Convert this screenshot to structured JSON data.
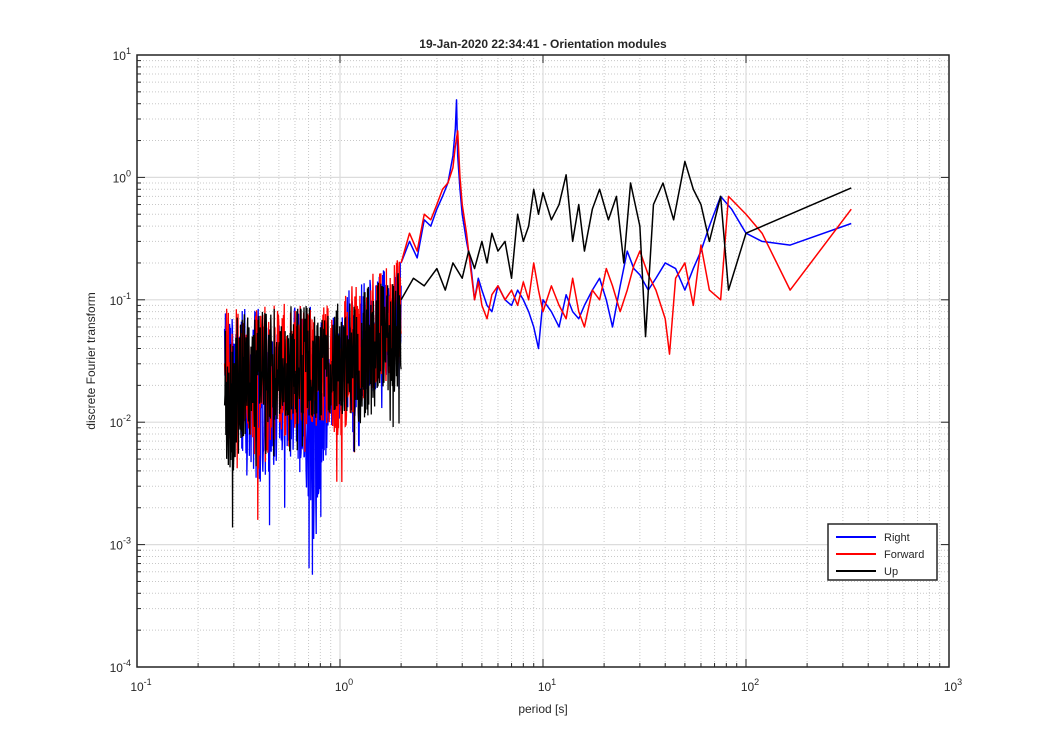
{
  "chart_data": {
    "type": "line",
    "title": "19-Jan-2020 22:34:41 - Orientation modules",
    "xlabel": "period [s]",
    "ylabel": "discrete Fourier transform",
    "xscale": "log",
    "yscale": "log",
    "xlim": [
      0.1,
      1000
    ],
    "ylim": [
      0.0001,
      10
    ],
    "grid": true,
    "minor_grid": true,
    "legend_position": "bottom-right",
    "x_ticks": [
      {
        "base": "10",
        "exp": "-1",
        "value": 0.1
      },
      {
        "base": "10",
        "exp": "0",
        "value": 1
      },
      {
        "base": "10",
        "exp": "1",
        "value": 10
      },
      {
        "base": "10",
        "exp": "2",
        "value": 100
      },
      {
        "base": "10",
        "exp": "3",
        "value": 1000
      }
    ],
    "y_ticks": [
      {
        "base": "10",
        "exp": "-4",
        "value": 0.0001
      },
      {
        "base": "10",
        "exp": "-3",
        "value": 0.001
      },
      {
        "base": "10",
        "exp": "-2",
        "value": 0.01
      },
      {
        "base": "10",
        "exp": "-1",
        "value": 0.1
      },
      {
        "base": "10",
        "exp": "0",
        "value": 1
      },
      {
        "base": "10",
        "exp": "1",
        "value": 10
      }
    ],
    "dense_region": {
      "x_range": [
        0.27,
        2.0
      ],
      "note_points": "approximate envelope of the noisy short-period spectrum",
      "Right": {
        "lower": [
          [
            0.27,
            0.006
          ],
          [
            0.3,
            0.003
          ],
          [
            0.35,
            0.002
          ],
          [
            0.4,
            0.001
          ],
          [
            0.5,
            0.002
          ],
          [
            0.6,
            0.002
          ],
          [
            0.75,
            0.0004
          ],
          [
            0.9,
            0.004
          ],
          [
            1.2,
            0.006
          ],
          [
            1.6,
            0.01
          ],
          [
            2.0,
            0.02
          ]
        ],
        "upper": [
          [
            0.27,
            0.1
          ],
          [
            0.35,
            0.09
          ],
          [
            0.45,
            0.085
          ],
          [
            0.6,
            0.095
          ],
          [
            0.8,
            0.1
          ],
          [
            1.0,
            0.11
          ],
          [
            1.3,
            0.14
          ],
          [
            1.6,
            0.18
          ],
          [
            2.0,
            0.22
          ]
        ]
      },
      "Forward": {
        "lower": [
          [
            0.27,
            0.004
          ],
          [
            0.3,
            0.003
          ],
          [
            0.35,
            0.004
          ],
          [
            0.4,
            0.0014
          ],
          [
            0.5,
            0.003
          ],
          [
            0.6,
            0.004
          ],
          [
            0.8,
            0.005
          ],
          [
            1.0,
            0.003
          ],
          [
            1.2,
            0.006
          ],
          [
            1.5,
            0.01
          ],
          [
            2.0,
            0.015
          ]
        ],
        "upper": [
          [
            0.27,
            0.09
          ],
          [
            0.35,
            0.085
          ],
          [
            0.45,
            0.09
          ],
          [
            0.6,
            0.1
          ],
          [
            0.8,
            0.1
          ],
          [
            1.0,
            0.12
          ],
          [
            1.3,
            0.15
          ],
          [
            1.6,
            0.2
          ],
          [
            2.0,
            0.23
          ]
        ]
      },
      "Up": {
        "lower": [
          [
            0.27,
            0.002
          ],
          [
            0.3,
            0.0013
          ],
          [
            0.35,
            0.004
          ],
          [
            0.45,
            0.005
          ],
          [
            0.6,
            0.006
          ],
          [
            0.8,
            0.005
          ],
          [
            1.0,
            0.007
          ],
          [
            1.3,
            0.004
          ],
          [
            1.6,
            0.008
          ],
          [
            2.0,
            0.01
          ]
        ],
        "upper": [
          [
            0.27,
            0.085
          ],
          [
            0.35,
            0.08
          ],
          [
            0.45,
            0.085
          ],
          [
            0.6,
            0.09
          ],
          [
            0.8,
            0.09
          ],
          [
            1.0,
            0.1
          ],
          [
            1.3,
            0.12
          ],
          [
            1.6,
            0.15
          ],
          [
            2.0,
            0.17
          ]
        ]
      }
    },
    "series": [
      {
        "name": "Right",
        "color": "#0000ff",
        "x": [
          2.0,
          2.2,
          2.4,
          2.6,
          2.8,
          3.0,
          3.2,
          3.4,
          3.6,
          3.7,
          3.75,
          3.8,
          3.9,
          4.0,
          4.2,
          4.4,
          4.6,
          4.8,
          5.0,
          5.3,
          5.6,
          6.0,
          6.5,
          7.0,
          7.5,
          8.0,
          8.5,
          9.0,
          9.5,
          10.0,
          11.0,
          12.0,
          13.0,
          14.0,
          15.0,
          16.0,
          17.5,
          19.0,
          20.5,
          22.0,
          24.0,
          26.0,
          28.0,
          30.0,
          33.0,
          36.0,
          40.0,
          45.0,
          50.0,
          55.0,
          60.0,
          66.0,
          75.0,
          85.0,
          100.0,
          120.0,
          165.0,
          330.0
        ],
        "y": [
          0.2,
          0.3,
          0.22,
          0.45,
          0.4,
          0.55,
          0.7,
          0.9,
          1.5,
          2.5,
          4.3,
          1.5,
          0.8,
          0.5,
          0.3,
          0.2,
          0.1,
          0.15,
          0.12,
          0.09,
          0.08,
          0.13,
          0.1,
          0.09,
          0.12,
          0.1,
          0.08,
          0.06,
          0.04,
          0.1,
          0.08,
          0.06,
          0.11,
          0.08,
          0.07,
          0.09,
          0.12,
          0.15,
          0.1,
          0.06,
          0.13,
          0.25,
          0.18,
          0.16,
          0.12,
          0.15,
          0.2,
          0.18,
          0.12,
          0.18,
          0.25,
          0.4,
          0.7,
          0.55,
          0.35,
          0.3,
          0.28,
          0.42
        ]
      },
      {
        "name": "Forward",
        "color": "#ff0000",
        "x": [
          2.0,
          2.2,
          2.4,
          2.6,
          2.8,
          3.0,
          3.2,
          3.4,
          3.6,
          3.7,
          3.8,
          3.9,
          4.0,
          4.2,
          4.4,
          4.6,
          4.8,
          5.0,
          5.3,
          5.6,
          6.0,
          6.5,
          7.0,
          7.5,
          8.0,
          8.5,
          9.0,
          9.5,
          10.0,
          11.0,
          12.0,
          13.0,
          14.0,
          15.0,
          16.0,
          17.5,
          19.0,
          20.5,
          22.0,
          24.0,
          26.0,
          28.0,
          30.0,
          33.0,
          36.0,
          40.0,
          42.0,
          45.0,
          50.0,
          55.0,
          60.0,
          66.0,
          75.0,
          82.0,
          100.0,
          120.0,
          165.0,
          330.0
        ],
        "y": [
          0.2,
          0.35,
          0.25,
          0.5,
          0.45,
          0.6,
          0.8,
          0.9,
          1.2,
          1.8,
          2.4,
          1.0,
          0.6,
          0.35,
          0.18,
          0.1,
          0.14,
          0.09,
          0.07,
          0.11,
          0.13,
          0.1,
          0.12,
          0.09,
          0.14,
          0.1,
          0.2,
          0.12,
          0.08,
          0.13,
          0.09,
          0.07,
          0.15,
          0.08,
          0.06,
          0.12,
          0.1,
          0.18,
          0.13,
          0.08,
          0.12,
          0.19,
          0.25,
          0.16,
          0.12,
          0.07,
          0.036,
          0.15,
          0.2,
          0.09,
          0.28,
          0.12,
          0.1,
          0.7,
          0.5,
          0.35,
          0.12,
          0.55
        ]
      },
      {
        "name": "Up",
        "color": "#000000",
        "x": [
          2.0,
          2.3,
          2.6,
          3.0,
          3.3,
          3.6,
          4.0,
          4.3,
          4.6,
          5.0,
          5.3,
          5.6,
          6.0,
          6.5,
          7.0,
          7.5,
          8.0,
          8.5,
          9.0,
          9.5,
          10.0,
          11.0,
          12.0,
          13.0,
          14.0,
          15.0,
          16.0,
          17.5,
          19.0,
          21.0,
          23.0,
          25.0,
          27.0,
          30.0,
          32.0,
          35.0,
          39.0,
          44.0,
          50.0,
          55.0,
          60.0,
          66.0,
          75.0,
          82.0,
          100.0,
          330.0
        ],
        "y": [
          0.1,
          0.15,
          0.13,
          0.18,
          0.12,
          0.2,
          0.15,
          0.25,
          0.18,
          0.3,
          0.2,
          0.35,
          0.25,
          0.3,
          0.15,
          0.5,
          0.3,
          0.4,
          0.8,
          0.5,
          0.75,
          0.45,
          0.6,
          1.05,
          0.3,
          0.6,
          0.25,
          0.55,
          0.8,
          0.45,
          0.7,
          0.2,
          0.9,
          0.4,
          0.05,
          0.6,
          0.9,
          0.45,
          1.35,
          0.8,
          0.6,
          0.3,
          0.7,
          0.12,
          0.35,
          0.82
        ]
      }
    ],
    "legend": [
      {
        "label": "Right",
        "color": "#0000ff"
      },
      {
        "label": "Forward",
        "color": "#ff0000"
      },
      {
        "label": "Up",
        "color": "#000000"
      }
    ]
  }
}
